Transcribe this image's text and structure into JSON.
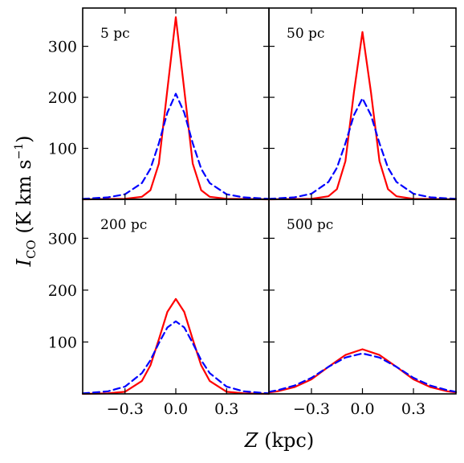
{
  "figure": {
    "xlabel_var": "Z",
    "xlabel_unit": " (kpc)",
    "ylabel_var": "I",
    "ylabel_sub": "CO",
    "ylabel_unit_pre": " (K km s",
    "ylabel_unit_sup": "−1",
    "ylabel_unit_post": ")"
  },
  "chart_data": [
    {
      "type": "line",
      "panel_label": "5 pc",
      "xlim": [
        -0.55,
        0.55
      ],
      "ylim": [
        0,
        375
      ],
      "xticks": [
        "−0.3",
        "0.0",
        "0.3"
      ],
      "yticks": [
        "100",
        "200",
        "300"
      ],
      "grid": false,
      "series": [
        {
          "style": "solid",
          "color": "#ff0000",
          "x": [
            -0.55,
            -0.3,
            -0.2,
            -0.15,
            -0.1,
            -0.05,
            0,
            0.05,
            0.1,
            0.15,
            0.2,
            0.3,
            0.55
          ],
          "y": [
            0,
            1,
            5,
            18,
            70,
            215,
            357,
            215,
            70,
            18,
            5,
            1,
            0
          ]
        },
        {
          "style": "dashed",
          "color": "#0000ff",
          "x": [
            -0.55,
            -0.4,
            -0.3,
            -0.2,
            -0.15,
            -0.1,
            -0.05,
            0,
            0.05,
            0.1,
            0.15,
            0.2,
            0.3,
            0.4,
            0.55
          ],
          "y": [
            1,
            4,
            10,
            32,
            60,
            110,
            170,
            207,
            170,
            110,
            60,
            32,
            10,
            4,
            1
          ]
        }
      ]
    },
    {
      "type": "line",
      "panel_label": "50 pc",
      "xlim": [
        -0.55,
        0.55
      ],
      "ylim": [
        0,
        375
      ],
      "xticks": [
        "−0.3",
        "0.0",
        "0.3"
      ],
      "yticks": [
        "100",
        "200",
        "300"
      ],
      "grid": false,
      "series": [
        {
          "style": "solid",
          "color": "#ff0000",
          "x": [
            -0.55,
            -0.3,
            -0.2,
            -0.15,
            -0.1,
            -0.05,
            0,
            0.05,
            0.1,
            0.15,
            0.2,
            0.3,
            0.55
          ],
          "y": [
            0,
            1,
            6,
            20,
            75,
            210,
            328,
            210,
            75,
            20,
            6,
            1,
            0
          ]
        },
        {
          "style": "dashed",
          "color": "#0000ff",
          "x": [
            -0.55,
            -0.4,
            -0.3,
            -0.2,
            -0.15,
            -0.1,
            -0.05,
            0,
            0.05,
            0.1,
            0.15,
            0.2,
            0.3,
            0.4,
            0.55
          ],
          "y": [
            1,
            4,
            11,
            34,
            62,
            110,
            165,
            198,
            165,
            110,
            62,
            34,
            11,
            4,
            1
          ]
        }
      ]
    },
    {
      "type": "line",
      "panel_label": "200 pc",
      "xlim": [
        -0.55,
        0.55
      ],
      "ylim": [
        0,
        375
      ],
      "xticks": [
        "−0.3",
        "0.0",
        "0.3"
      ],
      "yticks": [
        "100",
        "200",
        "300"
      ],
      "grid": false,
      "series": [
        {
          "style": "solid",
          "color": "#ff0000",
          "x": [
            -0.55,
            -0.4,
            -0.3,
            -0.2,
            -0.15,
            -0.1,
            -0.05,
            0,
            0.05,
            0.1,
            0.15,
            0.2,
            0.3,
            0.4,
            0.55
          ],
          "y": [
            0,
            1,
            4,
            25,
            55,
            105,
            158,
            183,
            158,
            105,
            55,
            25,
            4,
            1,
            0
          ]
        },
        {
          "style": "dashed",
          "color": "#0000ff",
          "x": [
            -0.55,
            -0.4,
            -0.3,
            -0.2,
            -0.15,
            -0.1,
            -0.05,
            0,
            0.05,
            0.1,
            0.15,
            0.2,
            0.3,
            0.4,
            0.55
          ],
          "y": [
            1,
            5,
            14,
            40,
            65,
            98,
            128,
            140,
            128,
            98,
            65,
            40,
            14,
            5,
            1
          ]
        }
      ]
    },
    {
      "type": "line",
      "panel_label": "500 pc",
      "xlim": [
        -0.55,
        0.55
      ],
      "ylim": [
        0,
        375
      ],
      "xticks": [
        "−0.3",
        "0.0",
        "0.3"
      ],
      "yticks": [
        "100",
        "200",
        "300"
      ],
      "grid": false,
      "series": [
        {
          "style": "solid",
          "color": "#ff0000",
          "x": [
            -0.55,
            -0.5,
            -0.4,
            -0.3,
            -0.2,
            -0.1,
            0,
            0.1,
            0.2,
            0.3,
            0.4,
            0.5,
            0.55
          ],
          "y": [
            3,
            5,
            13,
            28,
            52,
            75,
            86,
            75,
            52,
            28,
            13,
            5,
            3
          ]
        },
        {
          "style": "dashed",
          "color": "#0000ff",
          "x": [
            -0.55,
            -0.5,
            -0.4,
            -0.3,
            -0.2,
            -0.1,
            0,
            0.1,
            0.2,
            0.3,
            0.4,
            0.5,
            0.55
          ],
          "y": [
            4,
            7,
            16,
            31,
            52,
            70,
            78,
            70,
            52,
            31,
            16,
            7,
            4
          ]
        }
      ]
    }
  ]
}
